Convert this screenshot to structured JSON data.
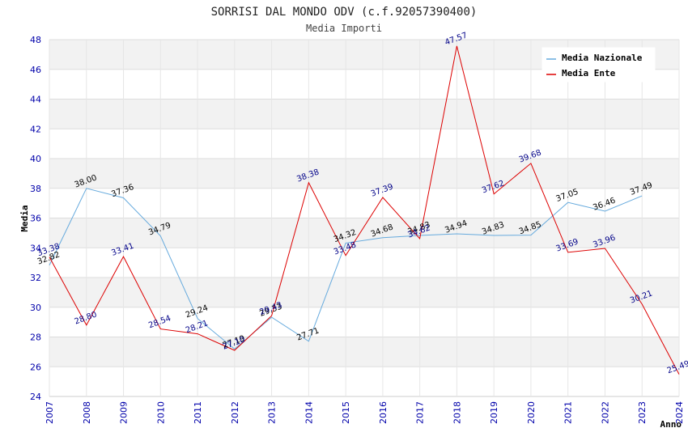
{
  "chart_data": {
    "type": "line",
    "title": "SORRISI DAL MONDO ODV (c.f.92057390400)",
    "subtitle": "Media Importi",
    "xlabel": "Anno",
    "ylabel": "Media",
    "ylim": [
      24,
      48
    ],
    "yticks": [
      "24",
      "26",
      "28",
      "30",
      "32",
      "34",
      "36",
      "38",
      "40",
      "42",
      "44",
      "46",
      "48"
    ],
    "x": [
      "2007",
      "2008",
      "2009",
      "2010",
      "2011",
      "2012",
      "2013",
      "2014",
      "2015",
      "2016",
      "2017",
      "2018",
      "2019",
      "2020",
      "2021",
      "2022",
      "2023",
      "2024"
    ],
    "series": [
      {
        "name": "Media Nazionale",
        "color": "#66aadd",
        "label_color": "#000000",
        "values": [
          32.82,
          38.0,
          37.36,
          34.79,
          29.24,
          27.19,
          29.33,
          27.71,
          34.32,
          34.68,
          34.83,
          34.94,
          34.83,
          34.85,
          37.05,
          36.46,
          37.49,
          null
        ],
        "labels": [
          "32.82",
          "38.00",
          "37.36",
          "34.79",
          "29.24",
          "27.19",
          "29.33",
          "27.71",
          "34.32",
          "34.68",
          "34.83",
          "34.94",
          "34.83",
          "34.85",
          "37.05",
          "36.46",
          "37.49",
          ""
        ]
      },
      {
        "name": "Media Ente",
        "color": "#dd0000",
        "label_color": "#000088",
        "values": [
          33.38,
          28.8,
          33.41,
          28.54,
          28.21,
          27.1,
          29.43,
          38.38,
          33.48,
          37.39,
          34.62,
          47.57,
          37.62,
          39.68,
          33.69,
          33.96,
          30.21,
          25.49
        ],
        "labels": [
          "33.38",
          "28.80",
          "33.41",
          "28.54",
          "28.21",
          "27.10",
          "29.43",
          "38.38",
          "33.48",
          "37.39",
          "34.62",
          "47.57",
          "37.62",
          "39.68",
          "33.69",
          "33.96",
          "30.21",
          "25.49"
        ]
      }
    ],
    "legend": "top-right"
  }
}
